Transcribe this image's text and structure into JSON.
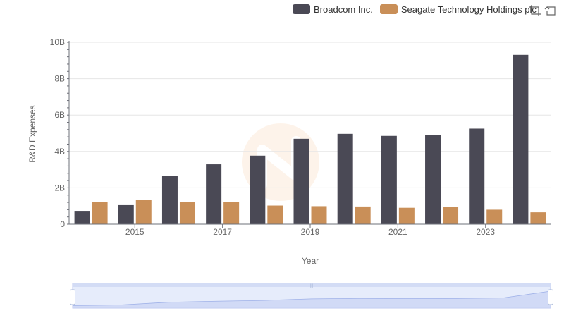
{
  "colors": {
    "series": [
      "#4a4955",
      "#c98f58"
    ],
    "grid": "#e6e6e6",
    "axis": "#6e7079",
    "zoom_fill": "#e6ecfb",
    "zoom_border": "#bfcaf0"
  },
  "toolbox": {
    "icons": [
      "zoom-icon",
      "restore-icon"
    ]
  },
  "chart_data": {
    "type": "bar",
    "categories": [
      "2014",
      "2015",
      "2016",
      "2017",
      "2018",
      "2019",
      "2020",
      "2021",
      "2022",
      "2023",
      "2024"
    ],
    "x_tick_labels": [
      "2015",
      "2017",
      "2019",
      "2021",
      "2023"
    ],
    "series": [
      {
        "name": "Broadcom Inc.",
        "values": [
          0.695,
          1.049,
          2.674,
          3.292,
          3.768,
          4.696,
          4.968,
          4.854,
          4.919,
          5.253,
          9.31
        ]
      },
      {
        "name": "Seagate Technology Holdings plc",
        "values": [
          1.226,
          1.353,
          1.237,
          1.232,
          1.026,
          0.991,
          0.973,
          0.903,
          0.941,
          0.797,
          0.654
        ]
      }
    ],
    "unit": "B",
    "xlabel": "Year",
    "ylabel": "R&D Expenses",
    "ylim": [
      0,
      10
    ],
    "yticks": [
      0,
      2,
      4,
      6,
      8,
      10
    ],
    "ytick_labels": [
      "0",
      "2B",
      "4B",
      "6B",
      "8B",
      "10B"
    ],
    "grid": true,
    "legend_position": "top-right",
    "data_zoom": true
  }
}
